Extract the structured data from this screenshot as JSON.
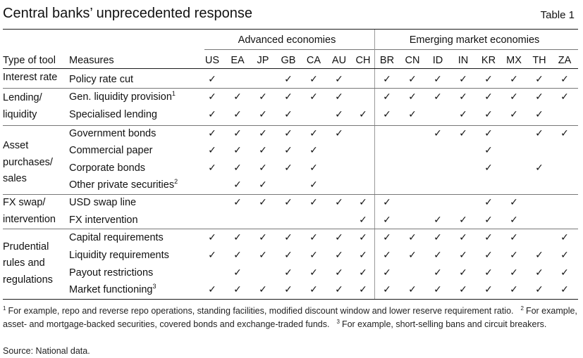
{
  "title": "Central banks’ unprecedented response",
  "table_number": "Table 1",
  "groups": {
    "advanced": "Advanced economies",
    "emerging": "Emerging market economies"
  },
  "headers": {
    "tool": "Type of tool",
    "measures": "Measures"
  },
  "countries": [
    "US",
    "EA",
    "JP",
    "GB",
    "CA",
    "AU",
    "CH",
    "BR",
    "CN",
    "ID",
    "IN",
    "KR",
    "MX",
    "TH",
    "ZA"
  ],
  "check_glyph": "✓",
  "sections": [
    {
      "tool_lines": [
        "Interest rate"
      ],
      "rows": [
        {
          "measure": "Policy rate cut",
          "sup": "",
          "checks": [
            1,
            0,
            0,
            1,
            1,
            1,
            0,
            1,
            1,
            1,
            1,
            1,
            1,
            1,
            1
          ]
        }
      ]
    },
    {
      "tool_lines": [
        "Lending/",
        "liquidity"
      ],
      "rows": [
        {
          "measure": "Gen. liquidity provision",
          "sup": "1",
          "checks": [
            1,
            1,
            1,
            1,
            1,
            1,
            0,
            1,
            1,
            1,
            1,
            1,
            1,
            1,
            1
          ]
        },
        {
          "measure": "Specialised lending",
          "sup": "",
          "checks": [
            1,
            1,
            1,
            1,
            0,
            1,
            1,
            1,
            1,
            0,
            1,
            1,
            1,
            1,
            0
          ]
        }
      ]
    },
    {
      "tool_lines": [
        "Asset",
        "purchases/",
        "sales"
      ],
      "rows": [
        {
          "measure": "Government bonds",
          "sup": "",
          "checks": [
            1,
            1,
            1,
            1,
            1,
            1,
            0,
            0,
            0,
            1,
            1,
            1,
            0,
            1,
            1
          ]
        },
        {
          "measure": "Commercial paper",
          "sup": "",
          "checks": [
            1,
            1,
            1,
            1,
            1,
            0,
            0,
            0,
            0,
            0,
            0,
            1,
            0,
            0,
            0
          ]
        },
        {
          "measure": "Corporate bonds",
          "sup": "",
          "checks": [
            1,
            1,
            1,
            1,
            1,
            0,
            0,
            0,
            0,
            0,
            0,
            1,
            0,
            1,
            0
          ]
        },
        {
          "measure": "Other private securities",
          "sup": "2",
          "checks": [
            0,
            1,
            1,
            0,
            1,
            0,
            0,
            0,
            0,
            0,
            0,
            0,
            0,
            0,
            0
          ]
        }
      ]
    },
    {
      "tool_lines": [
        "FX swap/",
        "intervention"
      ],
      "rows": [
        {
          "measure": "USD swap line",
          "sup": "",
          "checks": [
            0,
            1,
            1,
            1,
            1,
            1,
            1,
            1,
            0,
            0,
            0,
            1,
            1,
            0,
            0
          ]
        },
        {
          "measure": "FX intervention",
          "sup": "",
          "checks": [
            0,
            0,
            0,
            0,
            0,
            0,
            1,
            1,
            0,
            1,
            1,
            1,
            1,
            0,
            0
          ]
        }
      ]
    },
    {
      "tool_lines": [
        "Prudential",
        "rules and",
        "regulations"
      ],
      "rows": [
        {
          "measure": "Capital requirements",
          "sup": "",
          "checks": [
            1,
            1,
            1,
            1,
            1,
            1,
            1,
            1,
            1,
            1,
            1,
            1,
            1,
            0,
            1
          ]
        },
        {
          "measure": "Liquidity requirements",
          "sup": "",
          "checks": [
            1,
            1,
            1,
            1,
            1,
            1,
            1,
            1,
            1,
            1,
            1,
            1,
            1,
            1,
            1
          ]
        },
        {
          "measure": "Payout restrictions",
          "sup": "",
          "checks": [
            0,
            1,
            0,
            1,
            1,
            1,
            1,
            1,
            0,
            1,
            1,
            1,
            1,
            1,
            1
          ]
        },
        {
          "measure": "Market functioning",
          "sup": "3",
          "checks": [
            1,
            1,
            1,
            1,
            1,
            1,
            1,
            1,
            1,
            1,
            1,
            1,
            1,
            1,
            1
          ]
        }
      ]
    }
  ],
  "footnotes": [
    {
      "mark": "1",
      "text": "For example, repo and reverse repo operations, standing facilities, modified discount window and lower reserve requirement ratio."
    },
    {
      "mark": "2",
      "text": "For example, asset- and mortgage-backed securities, covered bonds and exchange-traded funds."
    },
    {
      "mark": "3",
      "text": "For example, short-selling bans and circuit breakers."
    }
  ],
  "source": "Source: National data."
}
